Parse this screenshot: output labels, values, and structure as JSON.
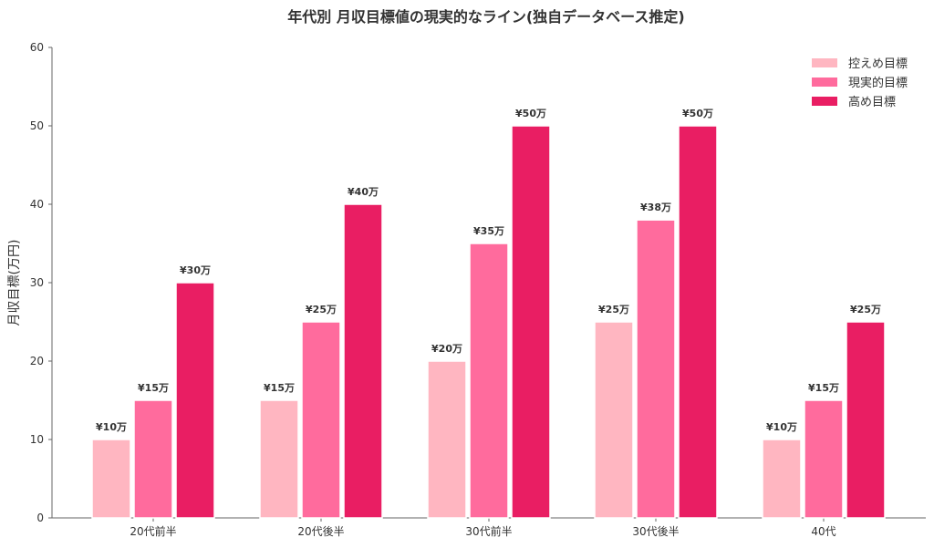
{
  "chart_data": {
    "type": "bar",
    "title": "年代別 月収目標値の現実的なライン(独自データベース推定)",
    "xlabel": "",
    "ylabel": "月収目標(万円)",
    "ylim": [
      0,
      60
    ],
    "yticks": [
      0,
      10,
      20,
      30,
      40,
      50,
      60
    ],
    "categories": [
      "20代前半",
      "20代後半",
      "30代前半",
      "30代後半",
      "40代"
    ],
    "series": [
      {
        "name": "控えめ目標",
        "color": "#ffb6c1",
        "values": [
          10,
          15,
          20,
          25,
          10
        ],
        "labels": [
          "¥10万",
          "¥15万",
          "¥20万",
          "¥25万",
          "¥10万"
        ]
      },
      {
        "name": "現実的目標",
        "color": "#ff6b9d",
        "values": [
          15,
          25,
          35,
          38,
          15
        ],
        "labels": [
          "¥15万",
          "¥25万",
          "¥35万",
          "¥38万",
          "¥15万"
        ]
      },
      {
        "name": "高め目標",
        "color": "#e91e63",
        "values": [
          30,
          40,
          50,
          50,
          25
        ],
        "labels": [
          "¥30万",
          "¥40万",
          "¥50万",
          "¥50万",
          "¥25万"
        ]
      }
    ],
    "legend_position": "top-right",
    "grid": false
  }
}
